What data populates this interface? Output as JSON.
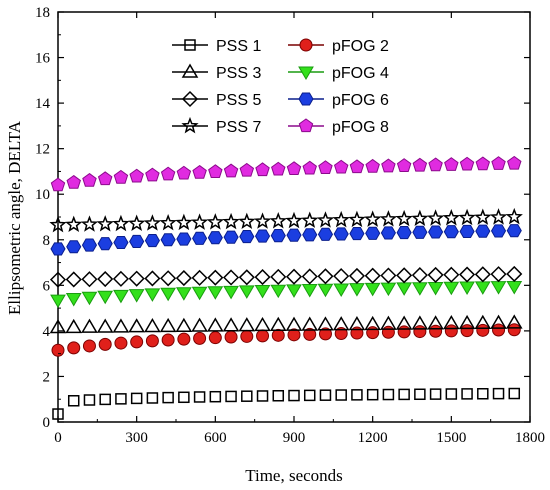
{
  "chart_data": {
    "type": "scatter",
    "title": "",
    "xlabel": "Time, seconds",
    "ylabel": "Ellipsometric angle, DELTA",
    "xlim": [
      0,
      1800
    ],
    "ylim": [
      0,
      18
    ],
    "x_ticks": [
      "0",
      "300",
      "600",
      "900",
      "1200",
      "1500",
      "1800"
    ],
    "y_ticks": [
      "0",
      "2",
      "4",
      "6",
      "8",
      "10",
      "12",
      "14",
      "16",
      "18"
    ],
    "legend_position": "top",
    "grid": false,
    "series": [
      {
        "name": "PSS 1",
        "marker": "square",
        "fill": "none",
        "stroke": "#000000",
        "color": "#000000",
        "x_step": 60,
        "y_start": 0.35,
        "y_end": 1.25,
        "curve": "rapid-rise-then-plateau",
        "values": [
          [
            0,
            0.35
          ],
          [
            60,
            0.9
          ],
          [
            1740,
            1.25
          ]
        ]
      },
      {
        "name": "pFOG 2",
        "marker": "circle",
        "fill": "#e0201b",
        "stroke": "#7a0000",
        "color": "#e0201b",
        "x_step": 60,
        "y_start": 3.15,
        "y_end": 4.05,
        "curve": "log-rise"
      },
      {
        "name": "PSS 3",
        "marker": "triangle-up",
        "fill": "none",
        "stroke": "#000000",
        "color": "#000000",
        "x_step": 60,
        "y_start": 4.15,
        "y_end": 4.35,
        "curve": "slow-rise"
      },
      {
        "name": "pFOG 4",
        "marker": "triangle-down",
        "fill": "#33e01b",
        "stroke": "#1a9c10",
        "color": "#33e01b",
        "x_step": 60,
        "y_start": 5.35,
        "y_end": 5.95,
        "curve": "log-rise"
      },
      {
        "name": "PSS 5",
        "marker": "diamond",
        "fill": "none",
        "stroke": "#000000",
        "color": "#000000",
        "x_step": 60,
        "y_start": 6.25,
        "y_end": 6.5,
        "curve": "slow-rise"
      },
      {
        "name": "pFOG 6",
        "marker": "hexagon",
        "fill": "#1b3ee0",
        "stroke": "#0a1e8c",
        "color": "#1b3ee0",
        "x_step": 60,
        "y_start": 7.6,
        "y_end": 8.4,
        "curve": "log-rise"
      },
      {
        "name": "PSS 7",
        "marker": "star",
        "fill": "none",
        "stroke": "#000000",
        "color": "#000000",
        "x_step": 60,
        "y_start": 8.65,
        "y_end": 9.0,
        "curve": "slow-rise"
      },
      {
        "name": "pFOG 8",
        "marker": "pentagon",
        "fill": "#e02be0",
        "stroke": "#8c0a8c",
        "color": "#e02be0",
        "x_step": 60,
        "y_start": 10.4,
        "y_end": 11.35,
        "curve": "log-rise"
      }
    ]
  }
}
